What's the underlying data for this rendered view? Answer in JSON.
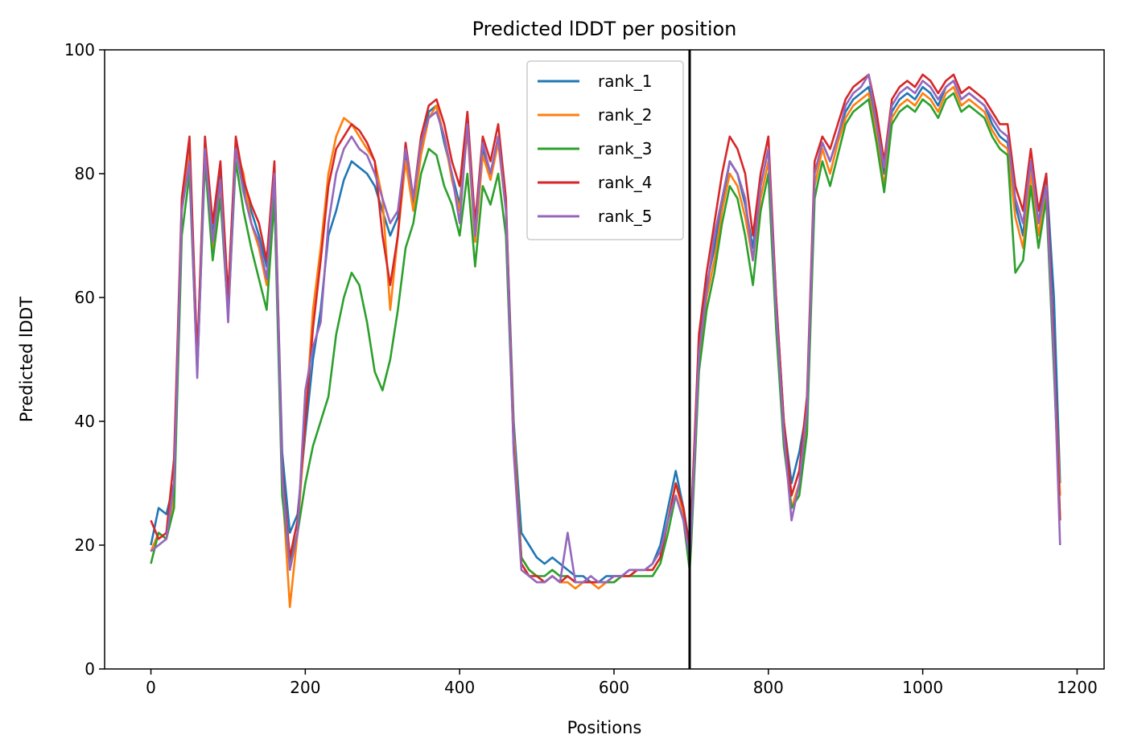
{
  "chart_data": {
    "type": "line",
    "title": "Predicted lDDT per position",
    "xlabel": "Positions",
    "ylabel": "Predicted lDDT",
    "xlim": [
      -60,
      1235
    ],
    "ylim": [
      0,
      100
    ],
    "xticks": [
      0,
      200,
      400,
      600,
      800,
      1000,
      1200
    ],
    "yticks": [
      0,
      20,
      40,
      60,
      80,
      100
    ],
    "grid": false,
    "legend_position": "top-center",
    "vline_x": 698,
    "vline_color": "#000000",
    "x": [
      0,
      10,
      20,
      30,
      40,
      50,
      60,
      70,
      80,
      90,
      100,
      110,
      120,
      130,
      140,
      150,
      160,
      170,
      180,
      190,
      200,
      210,
      220,
      230,
      240,
      250,
      260,
      270,
      280,
      290,
      300,
      310,
      320,
      330,
      340,
      350,
      360,
      370,
      380,
      390,
      400,
      410,
      420,
      430,
      440,
      450,
      460,
      470,
      480,
      490,
      500,
      510,
      520,
      530,
      540,
      550,
      560,
      570,
      580,
      590,
      600,
      610,
      620,
      630,
      640,
      650,
      660,
      670,
      680,
      690,
      698,
      700,
      710,
      720,
      730,
      740,
      750,
      760,
      770,
      780,
      790,
      800,
      810,
      820,
      830,
      840,
      850,
      860,
      870,
      880,
      890,
      900,
      910,
      920,
      930,
      940,
      950,
      960,
      970,
      980,
      990,
      1000,
      1010,
      1020,
      1030,
      1040,
      1050,
      1060,
      1070,
      1080,
      1090,
      1100,
      1110,
      1120,
      1130,
      1140,
      1150,
      1160,
      1170,
      1178
    ],
    "series": [
      {
        "name": "rank_1",
        "color": "#1f77b4",
        "values": [
          20,
          26,
          25,
          30,
          75,
          84,
          50,
          85,
          70,
          80,
          60,
          85,
          78,
          74,
          70,
          65,
          80,
          35,
          22,
          25,
          38,
          50,
          58,
          70,
          74,
          79,
          82,
          81,
          80,
          78,
          74,
          70,
          73,
          83,
          75,
          84,
          90,
          91,
          85,
          80,
          75,
          88,
          70,
          84,
          80,
          86,
          75,
          40,
          22,
          20,
          18,
          17,
          18,
          17,
          16,
          15,
          15,
          14,
          14,
          15,
          15,
          15,
          16,
          16,
          16,
          17,
          20,
          26,
          32,
          26,
          20,
          24,
          52,
          62,
          68,
          75,
          82,
          80,
          75,
          68,
          78,
          84,
          60,
          40,
          30,
          35,
          42,
          80,
          85,
          82,
          86,
          90,
          92,
          93,
          94,
          88,
          80,
          90,
          92,
          93,
          92,
          94,
          93,
          91,
          94,
          95,
          92,
          93,
          92,
          91,
          88,
          86,
          85,
          75,
          70,
          82,
          72,
          80,
          60,
          30
        ]
      },
      {
        "name": "rank_2",
        "color": "#ff7f0e",
        "values": [
          19,
          22,
          21,
          28,
          74,
          83,
          48,
          84,
          68,
          78,
          58,
          84,
          80,
          72,
          68,
          62,
          78,
          30,
          10,
          22,
          40,
          58,
          68,
          80,
          86,
          89,
          88,
          86,
          84,
          82,
          76,
          58,
          70,
          82,
          74,
          83,
          89,
          91,
          86,
          79,
          74,
          87,
          69,
          83,
          79,
          85,
          74,
          38,
          18,
          16,
          15,
          14,
          15,
          14,
          14,
          13,
          14,
          14,
          13,
          14,
          14,
          15,
          15,
          16,
          16,
          16,
          18,
          24,
          30,
          25,
          19,
          22,
          50,
          60,
          66,
          74,
          80,
          78,
          73,
          66,
          76,
          82,
          58,
          38,
          26,
          30,
          40,
          78,
          84,
          80,
          85,
          89,
          91,
          92,
          93,
          86,
          78,
          89,
          91,
          92,
          91,
          93,
          92,
          90,
          93,
          94,
          91,
          92,
          91,
          90,
          87,
          85,
          84,
          73,
          68,
          80,
          70,
          78,
          50,
          28
        ]
      },
      {
        "name": "rank_3",
        "color": "#2ca02c",
        "values": [
          17,
          22,
          21,
          26,
          70,
          80,
          48,
          82,
          66,
          76,
          57,
          82,
          74,
          68,
          63,
          58,
          76,
          28,
          17,
          22,
          30,
          36,
          40,
          44,
          54,
          60,
          64,
          62,
          56,
          48,
          45,
          50,
          58,
          68,
          72,
          80,
          84,
          83,
          78,
          75,
          70,
          80,
          65,
          78,
          75,
          80,
          70,
          36,
          18,
          16,
          15,
          15,
          16,
          15,
          15,
          14,
          14,
          14,
          14,
          14,
          14,
          15,
          15,
          15,
          15,
          15,
          17,
          22,
          28,
          24,
          16,
          20,
          48,
          58,
          64,
          72,
          78,
          76,
          70,
          62,
          74,
          80,
          55,
          36,
          26,
          28,
          38,
          76,
          82,
          78,
          83,
          88,
          90,
          91,
          92,
          85,
          77,
          88,
          90,
          91,
          90,
          92,
          91,
          89,
          92,
          93,
          90,
          91,
          90,
          89,
          86,
          84,
          83,
          64,
          66,
          78,
          68,
          76,
          48,
          24
        ]
      },
      {
        "name": "rank_4",
        "color": "#d62728",
        "values": [
          24,
          21,
          22,
          34,
          76,
          86,
          50,
          86,
          72,
          82,
          60,
          86,
          79,
          75,
          72,
          66,
          82,
          32,
          18,
          24,
          40,
          55,
          66,
          78,
          84,
          86,
          88,
          87,
          85,
          82,
          70,
          62,
          70,
          85,
          76,
          86,
          91,
          92,
          88,
          82,
          78,
          90,
          72,
          86,
          82,
          88,
          76,
          36,
          17,
          15,
          15,
          14,
          15,
          14,
          15,
          14,
          14,
          14,
          14,
          14,
          15,
          15,
          15,
          16,
          16,
          16,
          18,
          24,
          30,
          26,
          19,
          24,
          54,
          64,
          72,
          80,
          86,
          84,
          80,
          70,
          80,
          86,
          60,
          40,
          28,
          32,
          44,
          82,
          86,
          84,
          88,
          92,
          94,
          95,
          96,
          90,
          82,
          92,
          94,
          95,
          94,
          96,
          95,
          93,
          95,
          96,
          93,
          94,
          93,
          92,
          90,
          88,
          88,
          78,
          74,
          84,
          74,
          80,
          52,
          24
        ]
      },
      {
        "name": "rank_5",
        "color": "#9467bd",
        "values": [
          19,
          20,
          21,
          30,
          74,
          82,
          47,
          84,
          69,
          79,
          56,
          84,
          77,
          72,
          69,
          63,
          80,
          31,
          16,
          22,
          45,
          52,
          56,
          72,
          80,
          84,
          86,
          84,
          83,
          80,
          76,
          72,
          74,
          84,
          76,
          85,
          89,
          90,
          86,
          80,
          72,
          88,
          70,
          85,
          80,
          86,
          74,
          35,
          16,
          15,
          14,
          14,
          15,
          14,
          22,
          14,
          14,
          15,
          14,
          14,
          15,
          15,
          16,
          16,
          16,
          17,
          19,
          24,
          28,
          24,
          18,
          22,
          51,
          61,
          70,
          76,
          82,
          80,
          76,
          66,
          78,
          84,
          58,
          38,
          24,
          30,
          42,
          80,
          85,
          82,
          86,
          91,
          93,
          94,
          96,
          88,
          81,
          91,
          93,
          94,
          93,
          95,
          94,
          92,
          94,
          95,
          92,
          93,
          92,
          91,
          89,
          87,
          86,
          76,
          72,
          82,
          72,
          78,
          50,
          20
        ]
      }
    ]
  }
}
